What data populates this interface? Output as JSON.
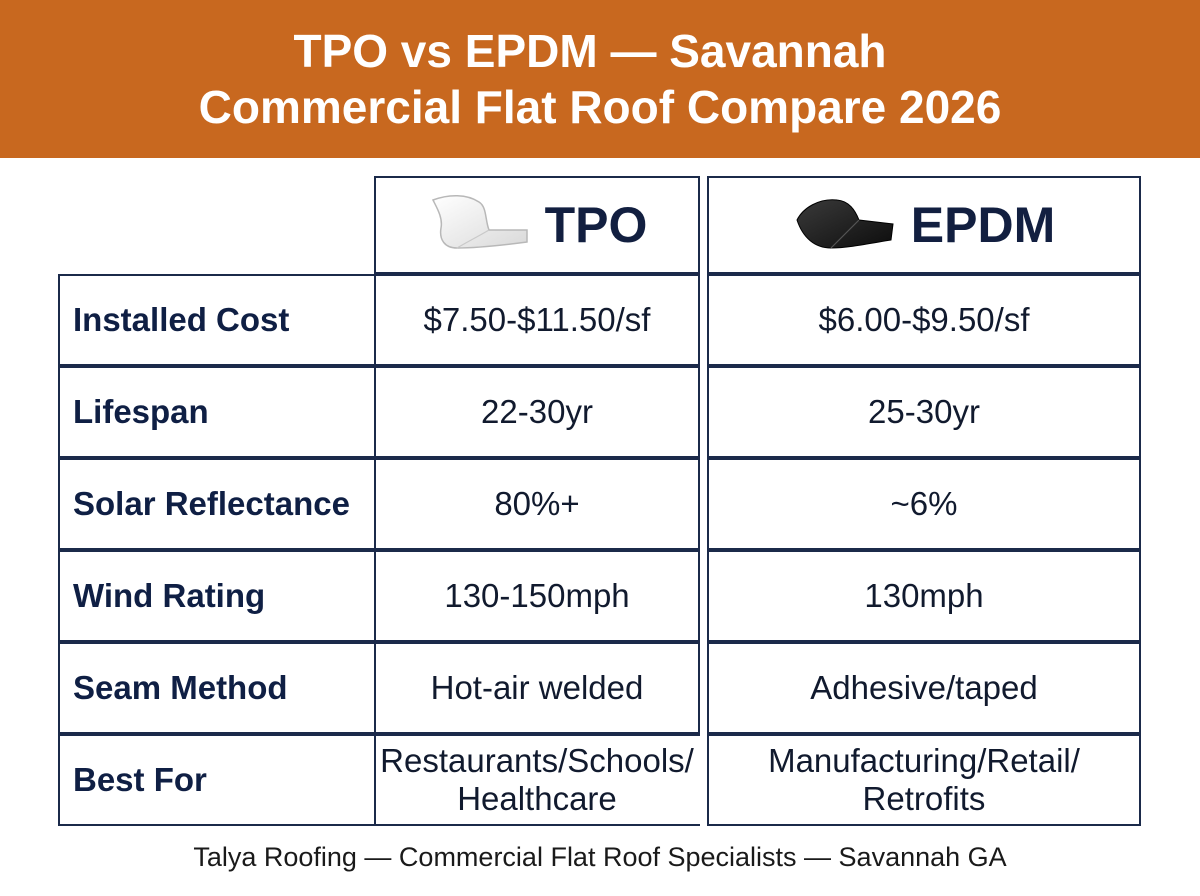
{
  "banner": {
    "title_line1": "TPO vs EPDM — Savannah",
    "title_line2": "Commercial Flat Roof Compare 2026",
    "color": "#c8681f"
  },
  "columns": {
    "tpo": {
      "label": "TPO",
      "icon": "white-membrane-swatch-icon"
    },
    "epdm": {
      "label": "EPDM",
      "icon": "black-membrane-swatch-icon"
    }
  },
  "rows": [
    {
      "label": "Installed Cost",
      "tpo": "$7.50-$11.50/sf",
      "epdm": "$6.00-$9.50/sf"
    },
    {
      "label": "Lifespan",
      "tpo": "22-30yr",
      "epdm": "25-30yr"
    },
    {
      "label": "Solar Reflectance",
      "tpo": "80%+",
      "epdm": "~6%"
    },
    {
      "label": "Wind Rating",
      "tpo": "130-150mph",
      "epdm": "130mph"
    },
    {
      "label": "Seam Method",
      "tpo": "Hot-air welded",
      "epdm": "Adhesive/taped"
    },
    {
      "label": "Best For",
      "tpo": "Restaurants/Schools/\nHealthcare",
      "epdm": "Manufacturing/Retail/\nRetrofits"
    }
  ],
  "footer": "Talya Roofing — Commercial Flat Roof Specialists — Savannah GA"
}
